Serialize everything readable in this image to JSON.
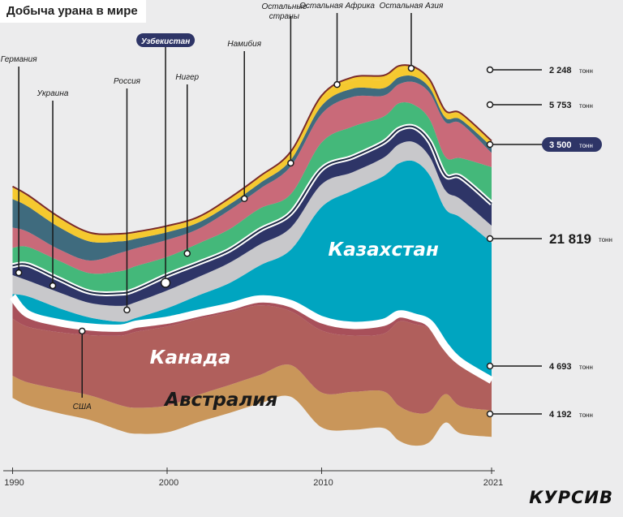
{
  "header": {
    "title": "Добыча урана в мире"
  },
  "brand": {
    "logo_text": "КУРСИВ"
  },
  "colors": {
    "background": "#ececed",
    "separator": "#ffffff",
    "outline": "#7a2a2a",
    "Австралия": "#c9965a",
    "Канада": "#b05f5c",
    "США": "#a8505a",
    "Казахстан": "#00a5c0",
    "Россия": "#c8c8cb",
    "Узбекистан": "#2e3567",
    "Германия": "#2e3567",
    "Украина": "#2e3567",
    "Нигер": "#44b87a",
    "Намибия": "#c96a79",
    "Остальные страны": "#3f6b7e",
    "Остальная Африка": "#f5c92f",
    "Остальная Азия": "#f5c92f",
    "highlight_pill": "#2e3567"
  },
  "chart_data": {
    "type": "area",
    "title": "Добыча урана в мире",
    "x": [
      1990,
      1991,
      1993,
      1995,
      1997,
      1998,
      2000,
      2002,
      2004,
      2006,
      2008,
      2010,
      2012,
      2014,
      2015,
      2016,
      2017,
      2018,
      2019,
      2021
    ],
    "x_ticks": [
      "1990",
      "2000",
      "2010",
      "2021"
    ],
    "ylabel": "",
    "unit": "тонн",
    "series": [
      {
        "name": "Австралия",
        "values": [
          3500,
          3600,
          3800,
          3900,
          4000,
          4100,
          4200,
          4300,
          4400,
          4500,
          5000,
          5500,
          6000,
          5800,
          5500,
          5200,
          4800,
          4500,
          4300,
          4192
        ]
      },
      {
        "name": "Канада",
        "values": [
          9000,
          8800,
          9000,
          9500,
          11000,
          12000,
          12500,
          12000,
          11500,
          11000,
          8500,
          9800,
          8900,
          9100,
          13300,
          14000,
          13000,
          7000,
          6900,
          4693
        ]
      },
      {
        "name": "США",
        "values": [
          3500,
          2000,
          1500,
          1300,
          1200,
          1200,
          1000,
          900,
          900,
          1000,
          1200,
          1700,
          1600,
          1800,
          1200,
          1100,
          900,
          600,
          100,
          10
        ]
      },
      {
        "name": "Казахстан",
        "values": [
          400,
          2800,
          2300,
          1500,
          1000,
          1000,
          1900,
          2800,
          3700,
          5300,
          8500,
          17800,
          21300,
          23100,
          23800,
          24600,
          23400,
          21700,
          22800,
          21819
        ]
      },
      {
        "name": "Россия",
        "values": [
          3000,
          2500,
          2500,
          2300,
          2500,
          2500,
          2800,
          2900,
          3200,
          3300,
          3500,
          3600,
          2900,
          2900,
          3000,
          3000,
          2900,
          2900,
          2900,
          2635
        ]
      },
      {
        "name": "Узбекистан",
        "values": [
          1500,
          2500,
          2100,
          1700,
          2000,
          2000,
          2400,
          2200,
          2000,
          2300,
          2300,
          2400,
          2400,
          2400,
          2400,
          2400,
          2400,
          2400,
          3500,
          3500
        ]
      },
      {
        "name": "Нигер",
        "values": [
          2800,
          2800,
          2900,
          3000,
          3500,
          3700,
          2900,
          3100,
          3300,
          3400,
          3000,
          4200,
          4800,
          4100,
          4100,
          3500,
          3500,
          2900,
          3000,
          5753
        ]
      },
      {
        "name": "Намибия",
        "values": [
          3200,
          2400,
          1800,
          2000,
          2900,
          2800,
          2700,
          2300,
          3000,
          3100,
          4400,
          4500,
          4700,
          3300,
          3000,
          3600,
          4200,
          5500,
          5500,
          2248
        ]
      },
      {
        "name": "Остальные страны",
        "values": [
          4500,
          4000,
          3500,
          3000,
          1800,
          1500,
          1200,
          1000,
          900,
          900,
          1000,
          1300,
          1300,
          1200,
          1100,
          900,
          800,
          700,
          600,
          1000
        ]
      },
      {
        "name": "Остальная Африка",
        "values": [
          1800,
          1600,
          1400,
          1200,
          1000,
          900,
          800,
          700,
          800,
          900,
          1000,
          1200,
          1300,
          1400,
          1300,
          1100,
          1000,
          900,
          800,
          700
        ]
      },
      {
        "name": "Остальная Азия",
        "values": [
          200,
          200,
          200,
          200,
          200,
          200,
          200,
          200,
          200,
          200,
          300,
          400,
          500,
          600,
          500,
          400,
          300,
          200,
          200,
          200
        ]
      }
    ],
    "labels_in_chart": [
      {
        "text": "Канада"
      },
      {
        "text": "Австралия"
      },
      {
        "text": "Казахстан"
      }
    ],
    "callouts": [
      "Германия",
      "Украина",
      "Россия",
      "Узбекистан",
      "Нигер",
      "Намибия",
      "Остальные страны",
      "Остальная Африка",
      "Остальная Азия",
      "США"
    ],
    "end_values": [
      {
        "country": "Намибия",
        "value": "2 248",
        "unit": "тонн"
      },
      {
        "country": "Нигер",
        "value": "5 753",
        "unit": "тонн"
      },
      {
        "country": "Узбекистан",
        "value": "3 500",
        "unit": "тонн",
        "highlight": true
      },
      {
        "country": "Казахстан",
        "value": "21 819",
        "unit": "тонн"
      },
      {
        "country": "Канада",
        "value": "4 693",
        "unit": "тонн"
      },
      {
        "country": "Австралия",
        "value": "4 192",
        "unit": "тонн"
      }
    ]
  }
}
